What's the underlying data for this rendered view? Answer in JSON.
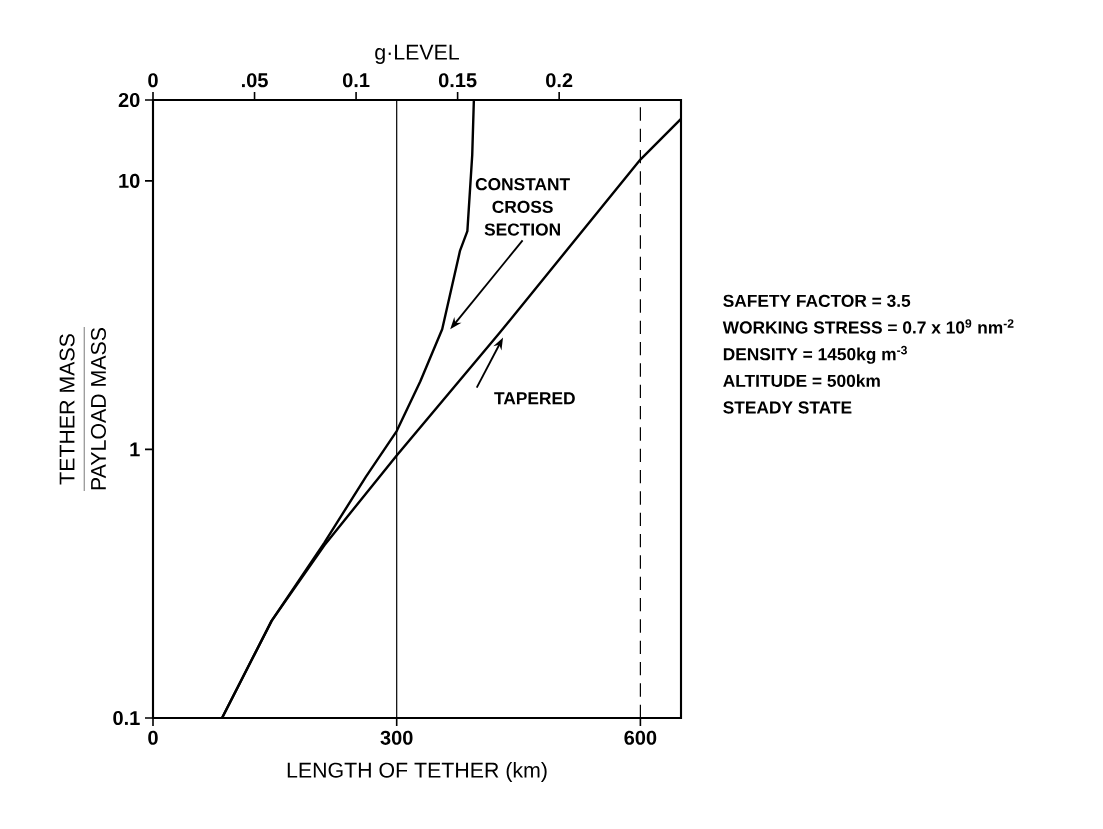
{
  "chart_data": {
    "type": "line",
    "xlabel": "LENGTH OF TETHER (km)",
    "ylabel": "\\frac{\\mbox{TETHER MASS}}{\\mbox{PAYLOAD MASS}}",
    "x2label": "g·LEVEL",
    "xlim": [
      0,
      650
    ],
    "xticks": [
      0,
      300,
      600
    ],
    "x2lim": [
      0,
      0.26
    ],
    "x2ticks": [
      0,
      {
        "value": 0.05,
        "label": ".05"
      },
      0.1,
      0.15,
      0.2
    ],
    "ylim": [
      0.1,
      20
    ],
    "yticks": [
      0.1,
      1,
      10,
      20
    ],
    "log": "y",
    "series": [
      {
        "name": "CONSTANT CROSS SECTION",
        "color": "#000000",
        "x": [
          85,
          146,
          211,
          262,
          300,
          329,
          356,
          378,
          387,
          393,
          395
        ],
        "values": [
          0.1,
          0.23,
          0.45,
          0.79,
          1.17,
          1.79,
          2.8,
          5.5,
          6.5,
          12.5,
          20
        ]
      },
      {
        "name": "TAPERED",
        "color": "#000000",
        "x": [
          85,
          146,
          211,
          300,
          426,
          600,
          650
        ],
        "values": [
          0.1,
          0.23,
          0.44,
          0.95,
          2.7,
          12,
          17
        ]
      }
    ],
    "ref_lines": [
      {
        "axis": "x",
        "value": 300,
        "color": "#000000"
      },
      {
        "axis": "x",
        "value": 600,
        "color": "#000000",
        "line_style": "dashed"
      }
    ],
    "annotations": [
      "SAFETY FACTOR = 3.5",
      "WORKING STRESS = 0.7 x 10$^{9}$ nm$^{-2}$",
      "DENSITY = 1450kg m$^{-3}$",
      "ALTITUDE = 500km",
      "STEADY STATE"
    ]
  }
}
